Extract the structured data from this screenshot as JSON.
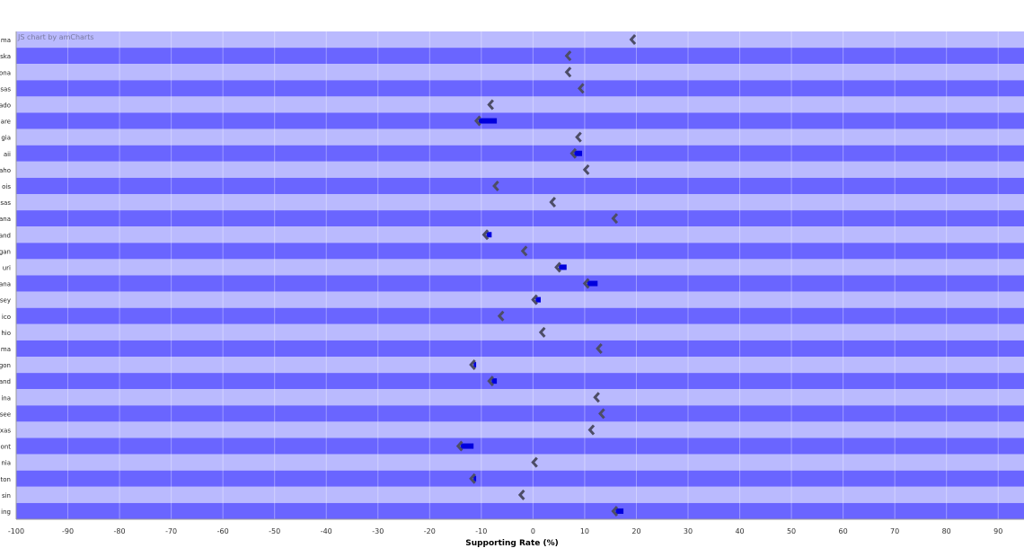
{
  "credit_text": "JS chart by amCharts",
  "colors": {
    "band_light": "#babafe",
    "band_dark": "#6a65ff",
    "bar": "#0000dd",
    "marker": "#4d4d66",
    "grid": "#ffffff"
  },
  "chart_data": {
    "type": "bar",
    "orientation": "horizontal",
    "xlabel": "Supporting Rate (%)",
    "xlim": [
      -100,
      95
    ],
    "x_ticks": [
      -100,
      -90,
      -80,
      -70,
      -60,
      -50,
      -40,
      -30,
      -20,
      -10,
      0,
      10,
      20,
      30,
      40,
      50,
      60,
      70,
      80,
      90
    ],
    "categories": [
      "ma",
      "ska",
      "ona",
      "sas",
      "ado",
      "are",
      "gia",
      "aii",
      "aho",
      "ois",
      "sas",
      "ana",
      "and",
      "gan",
      "uri",
      "ana",
      "sey",
      "ico",
      "hio",
      "ma",
      "gon",
      "and",
      "ina",
      "see",
      "xas",
      "ont",
      "nia",
      "ton",
      "sin",
      "ing"
    ],
    "series": [
      {
        "name": "",
        "values": [
          19.5,
          7,
          7,
          9.5,
          -8,
          -7,
          9,
          9.5,
          10.5,
          -7,
          4,
          16,
          -8,
          -1.5,
          6.5,
          12.5,
          1.5,
          -6,
          2,
          13,
          -11,
          -7,
          12.5,
          13.5,
          11.5,
          -11.5,
          0.5,
          -11,
          -2,
          17.5
        ]
      },
      {
        "name": "",
        "values": [
          19.5,
          7,
          7,
          9.5,
          -8,
          -10.5,
          9,
          8,
          10.5,
          -7,
          4,
          16,
          -9,
          -1.5,
          5,
          10.5,
          0.5,
          -6,
          2,
          13,
          -11.5,
          -8,
          12.5,
          13.5,
          11.5,
          -14,
          0.5,
          -11.5,
          -2,
          16
        ]
      }
    ]
  }
}
